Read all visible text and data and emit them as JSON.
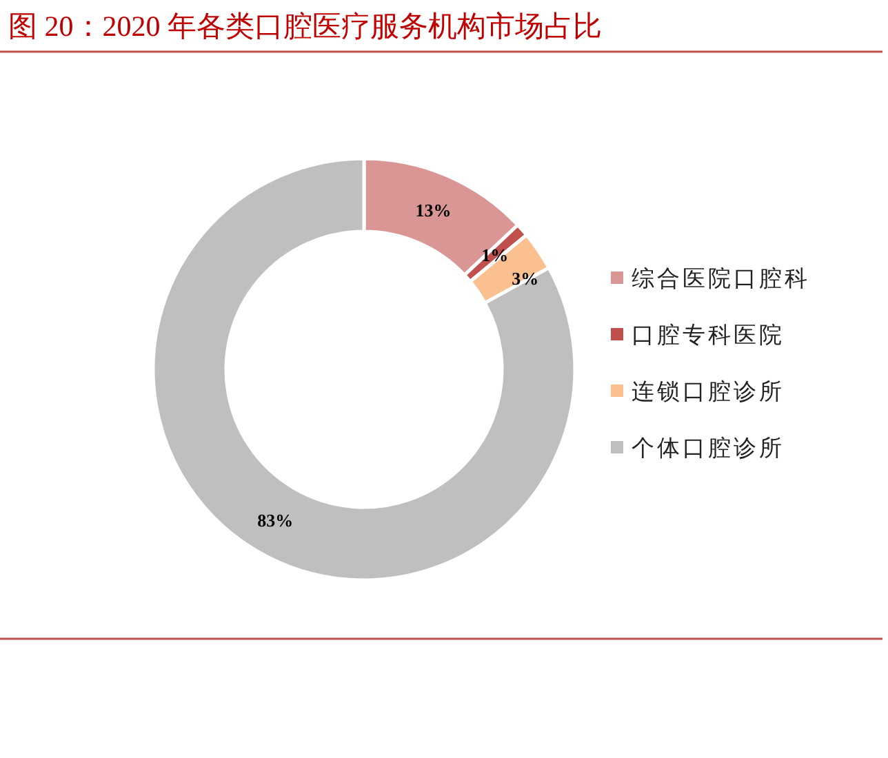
{
  "chart_data": {
    "type": "donut",
    "title": "图 20：2020 年各类口腔医疗服务机构市场占比",
    "categories": [
      "综合医院口腔科",
      "口腔专科医院",
      "连锁口腔诊所",
      "个体口腔诊所"
    ],
    "values": [
      13,
      1,
      3,
      83
    ],
    "colors": [
      "#d99694",
      "#c0504d",
      "#fac090",
      "#bfbfbf"
    ],
    "value_labels": [
      "13%",
      "1%",
      "3%",
      "83%"
    ],
    "legend": "right"
  }
}
